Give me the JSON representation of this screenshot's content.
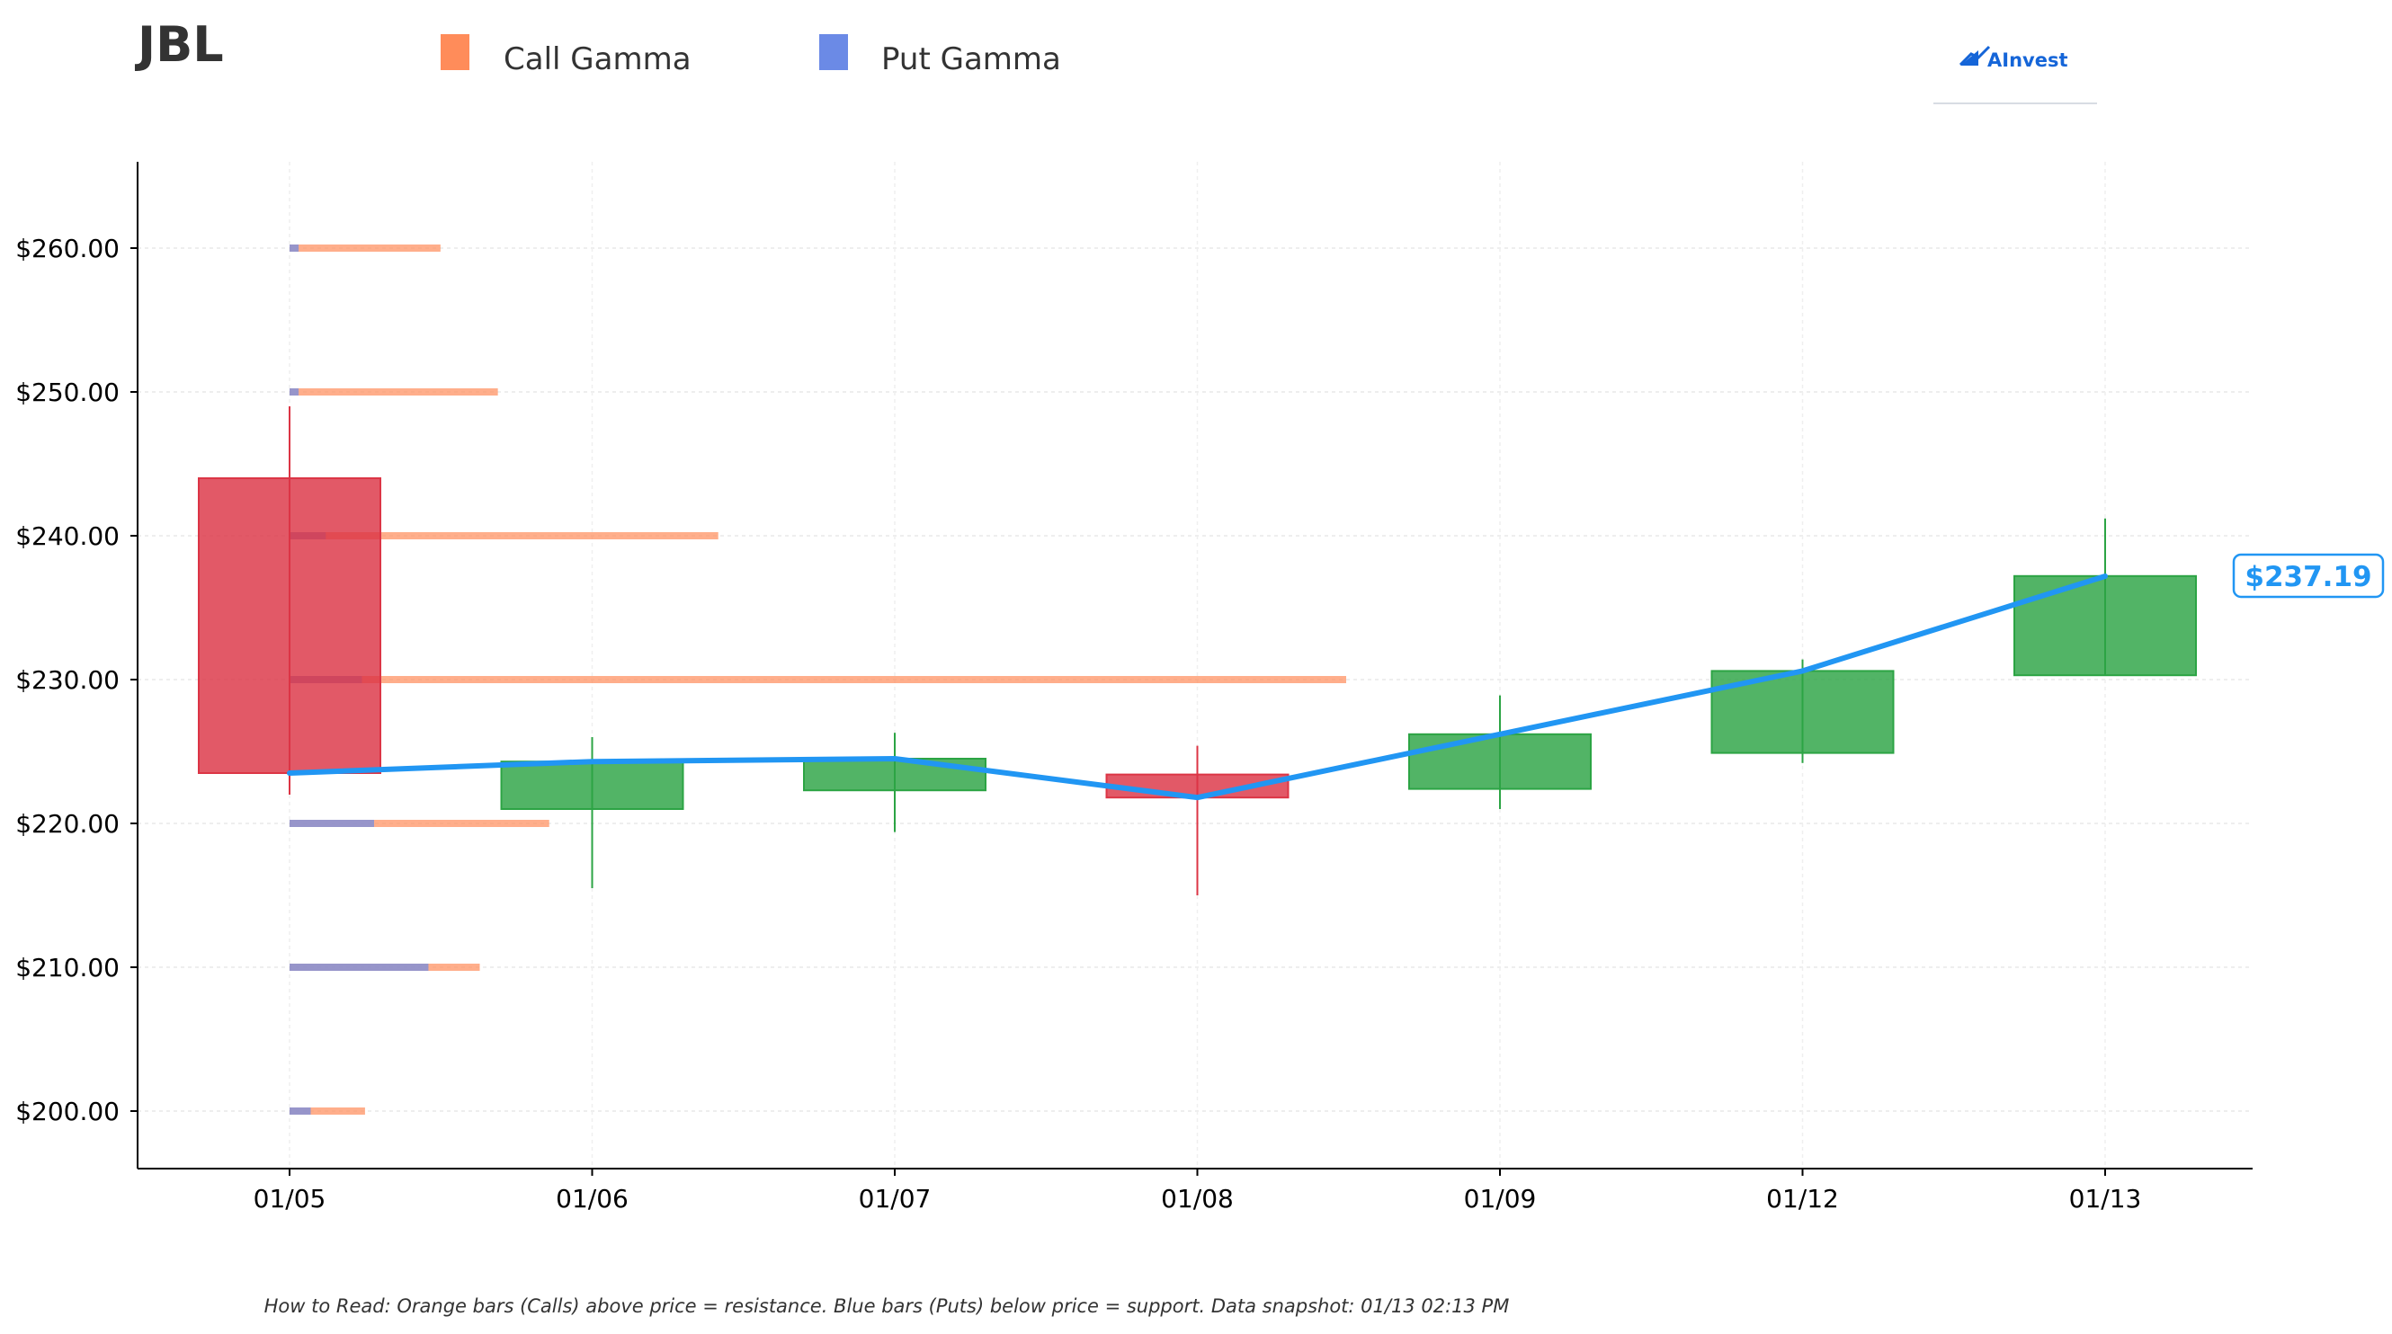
{
  "ticker": "JBL",
  "logo": {
    "text": "AInvest"
  },
  "legend": [
    {
      "label": "Call Gamma",
      "color": "#ff8c5a"
    },
    {
      "label": "Put Gamma",
      "color": "#6b8ae6"
    }
  ],
  "footer": "How to Read: Orange bars (Calls) above price = resistance. Blue bars (Puts) below price = support. Data snapshot: 01/13 02:13 PM",
  "chart_data": {
    "type": "candlestick",
    "categories": [
      "01/05",
      "01/06",
      "01/07",
      "01/08",
      "01/09",
      "01/12",
      "01/13"
    ],
    "ohlc": [
      {
        "open": 244.0,
        "high": 249.0,
        "low": 222.0,
        "close": 223.5
      },
      {
        "open": 221.0,
        "high": 226.0,
        "low": 215.5,
        "close": 224.3
      },
      {
        "open": 222.3,
        "high": 226.3,
        "low": 219.4,
        "close": 224.5
      },
      {
        "open": 223.4,
        "high": 225.4,
        "low": 215.0,
        "close": 221.8
      },
      {
        "open": 222.4,
        "high": 228.9,
        "low": 221.0,
        "close": 226.2
      },
      {
        "open": 224.9,
        "high": 231.4,
        "low": 224.2,
        "close": 230.6
      },
      {
        "open": 230.3,
        "high": 241.2,
        "low": 230.3,
        "close": 237.2
      }
    ],
    "close_line": [
      223.5,
      224.3,
      224.5,
      221.8,
      226.2,
      230.6,
      237.19
    ],
    "last_price_label": "$237.19",
    "gamma_strikes": [
      200,
      210,
      220,
      230,
      240,
      250,
      260
    ],
    "call_gamma": [
      2.5,
      6.3,
      8.6,
      35.0,
      14.2,
      6.9,
      5.0
    ],
    "put_gamma": [
      0.7,
      4.6,
      2.8,
      2.4,
      1.2,
      0.3,
      0.3
    ],
    "ylim": [
      196,
      266
    ],
    "yticks": [
      "$200.00",
      "$210.00",
      "$220.00",
      "$230.00",
      "$240.00",
      "$250.00",
      "$260.00"
    ],
    "colors": {
      "up": "#2ca444",
      "down": "#dc3545",
      "line": "#2196F3",
      "call": "#ff8c5a",
      "put": "#6b8ae6"
    },
    "grid": true
  }
}
